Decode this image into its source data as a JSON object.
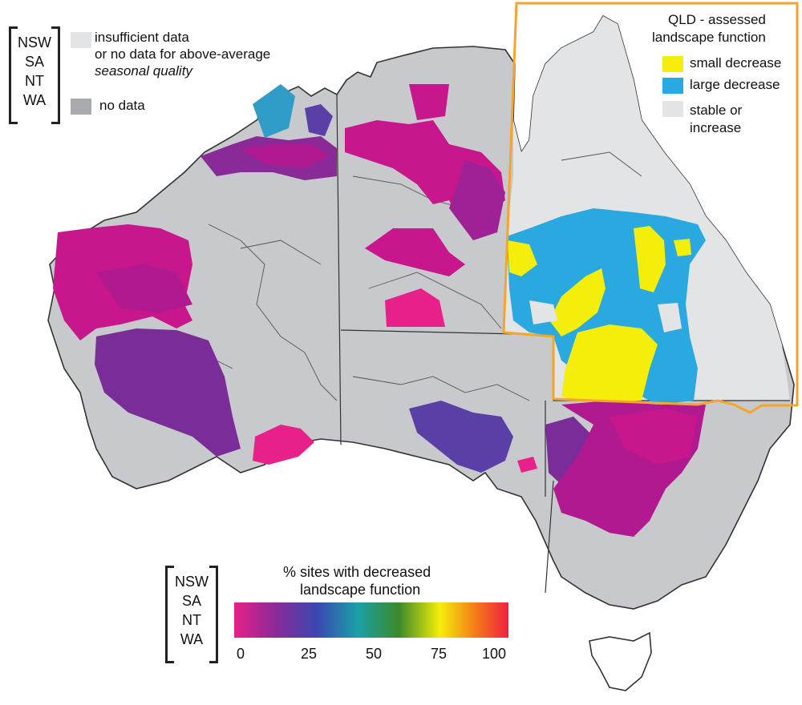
{
  "top_legend": {
    "states": [
      "NSW",
      "SA",
      "NT",
      "WA"
    ],
    "insufficient_label_1": "insufficient data",
    "insufficient_label_2": "or no data for above-average",
    "insufficient_label_3": "seasonal quality",
    "no_data_label": "no data",
    "insufficient_color": "#e3e4e6",
    "no_data_color": "#a9aab0"
  },
  "qld_legend": {
    "title_1": "QLD - assessed",
    "title_2": "landscape function",
    "items": [
      {
        "label": "small decrease",
        "color": "#f5ee0a"
      },
      {
        "label": "large decrease",
        "color": "#2aa9e0"
      },
      {
        "label": "stable or",
        "label2": "increase",
        "color": "#e3e4e6"
      }
    ],
    "frame_color": "#f4a52a"
  },
  "scale_legend": {
    "states": [
      "NSW",
      "SA",
      "NT",
      "WA"
    ],
    "title_1": "% sites with decreased",
    "title_2": "landscape function",
    "ticks": [
      "0",
      "25",
      "50",
      "75",
      "100"
    ]
  },
  "colors": {
    "land_grey": "#c8c9cc",
    "magenta": "#c8168d",
    "purple": "#7a2d98",
    "violet_blue": "#5a3fa6",
    "hot_pink": "#e8208a",
    "teal": "#2f9dc8",
    "qld_light": "#e3e4e6"
  }
}
